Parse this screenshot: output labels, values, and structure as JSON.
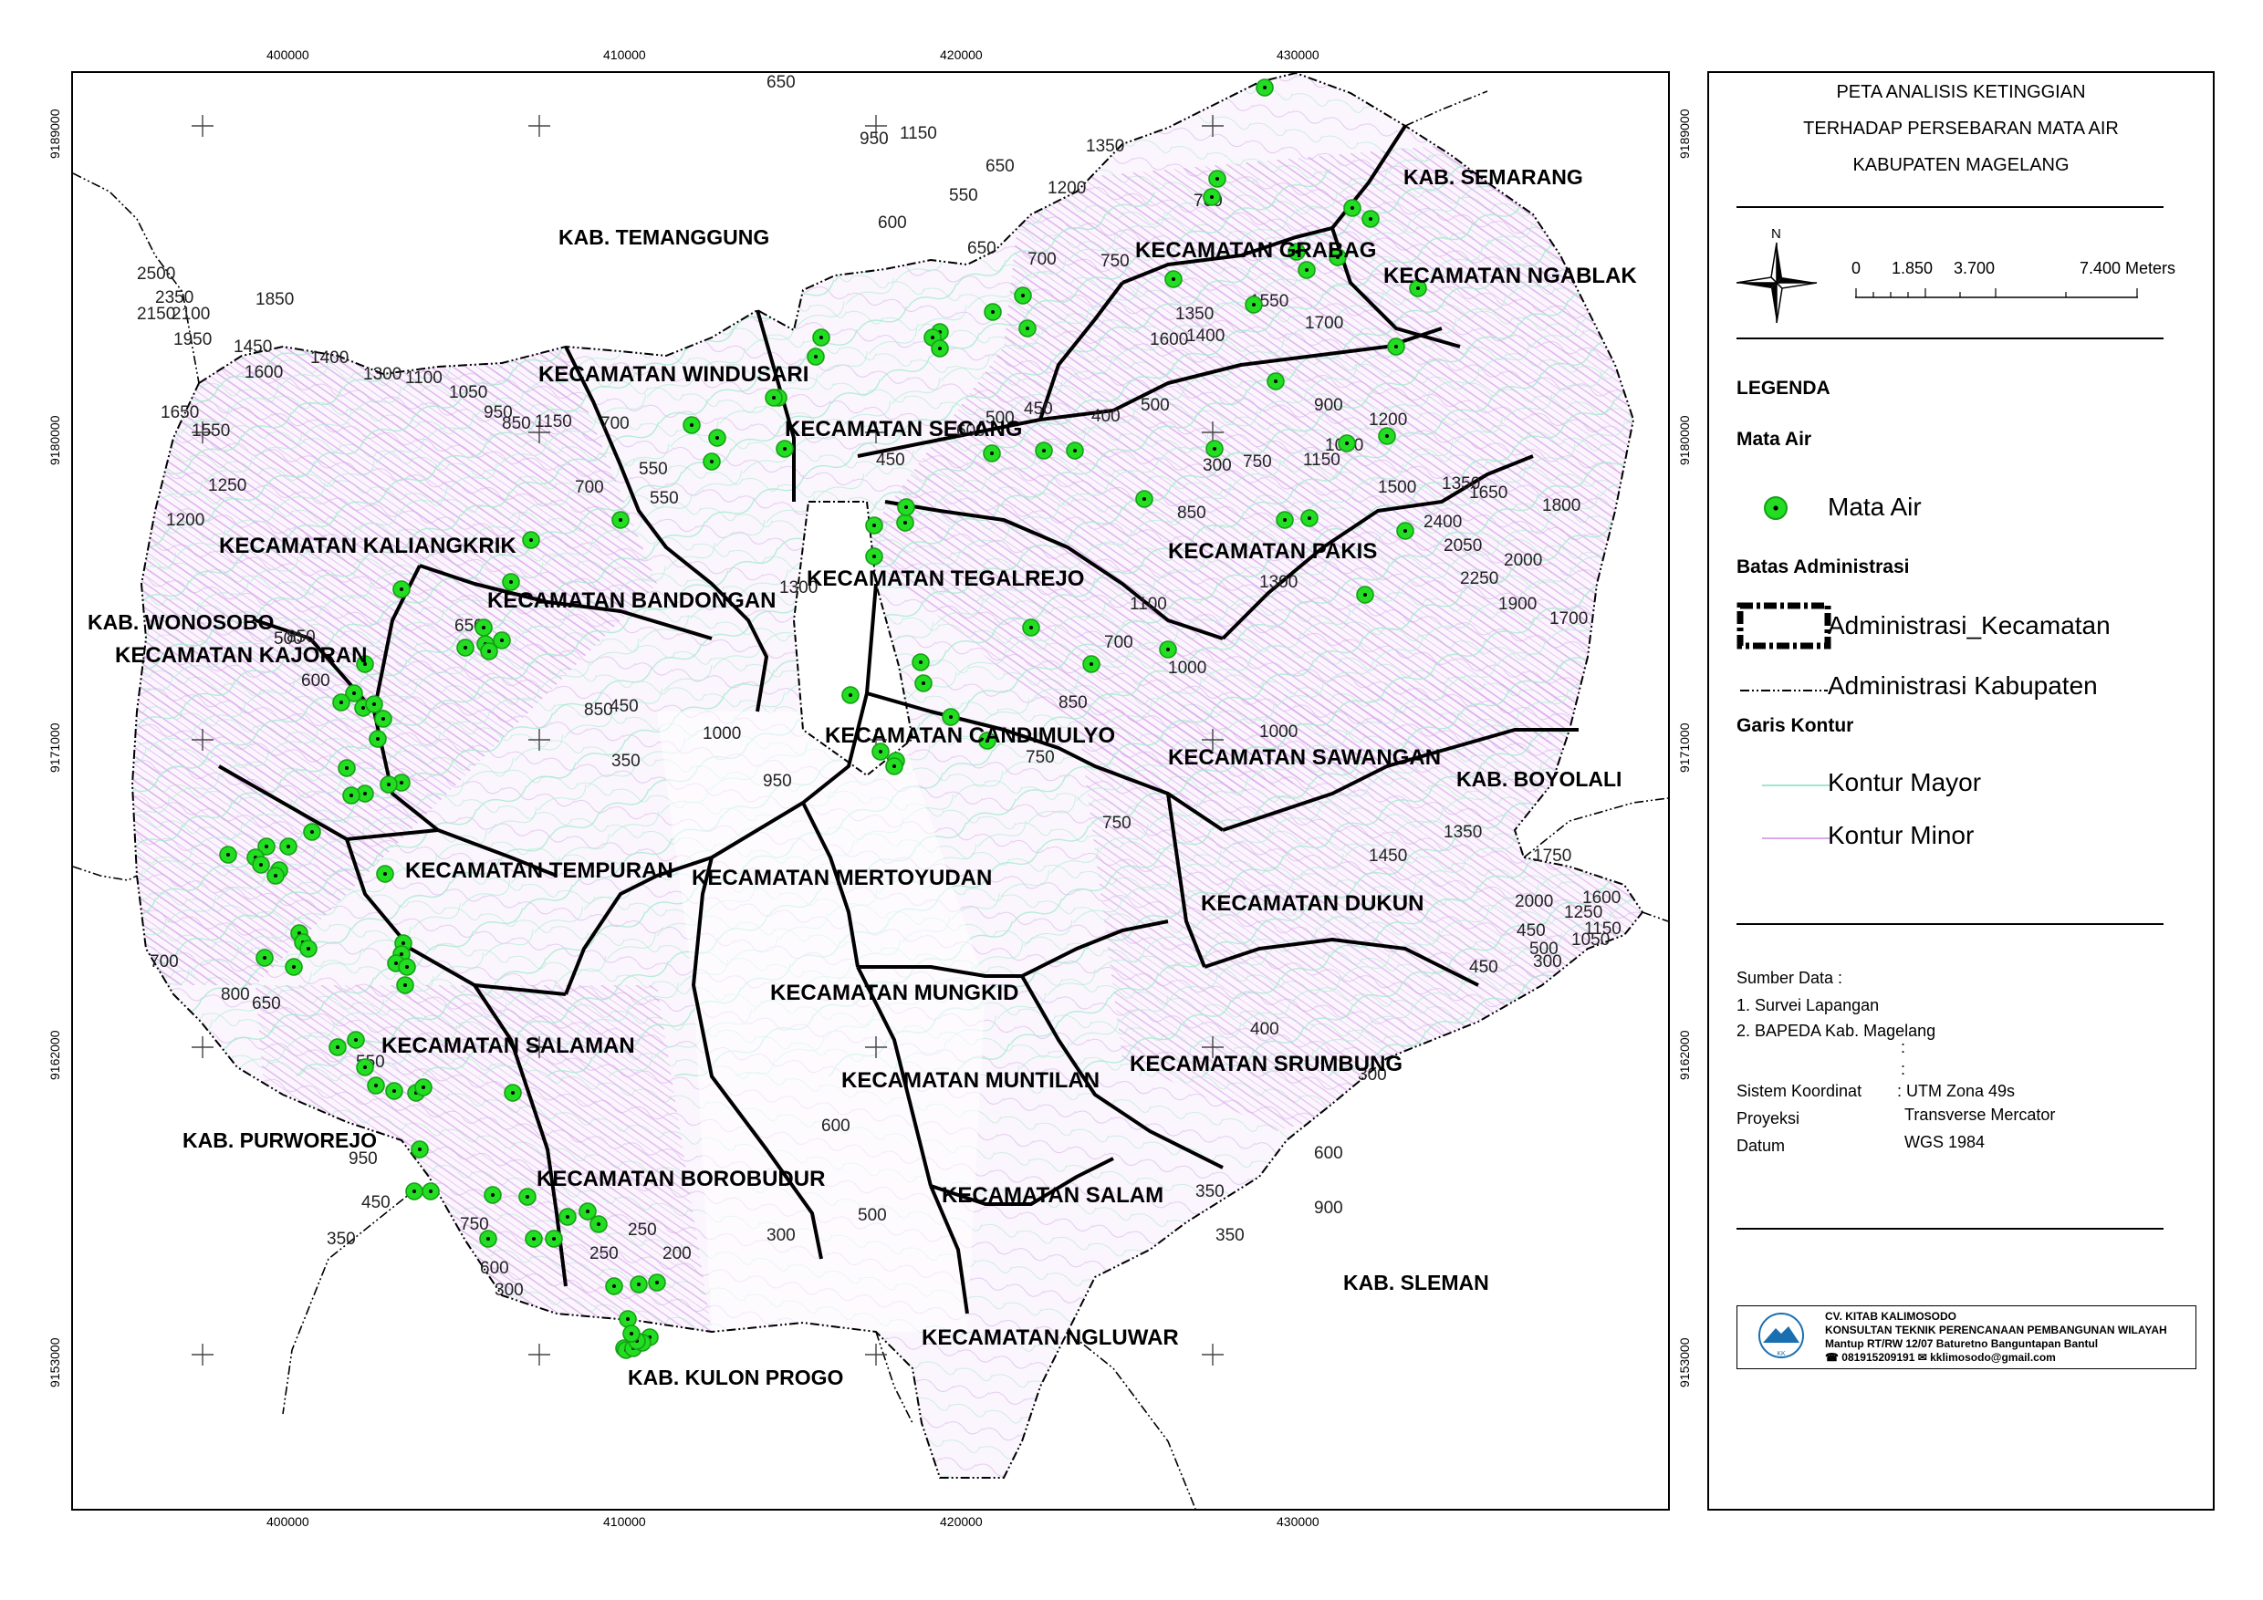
{
  "map": {
    "x_ticks": [
      "400000",
      "410000",
      "420000",
      "430000"
    ],
    "y_ticks": [
      "9189000",
      "9180000",
      "9171000",
      "9162000",
      "9153000"
    ],
    "kabupaten_labels": [
      "KAB. TEMANGGUNG",
      "KAB. SEMARANG",
      "KAB. WONOSOBO",
      "KAB. BOYOLALI",
      "KAB. PURWOREJO",
      "KAB. SLEMAN",
      "KAB. KULON PROGO"
    ],
    "kecamatan_labels": [
      "KECAMATAN WINDUSARI",
      "KECAMATAN SECANG",
      "KECAMATAN GRABAG",
      "KECAMATAN NGABLAK",
      "KECAMATAN KALIANGKRIK",
      "KECAMATAN BANDONGAN",
      "KECAMATAN TEGALREJO",
      "KECAMATAN PAKIS",
      "KECAMATAN KAJORAN",
      "KECAMATAN CANDIMULYO",
      "KECAMATAN SAWANGAN",
      "KECAMATAN TEMPURAN",
      "KECAMATAN MERTOYUDAN",
      "KECAMATAN DUKUN",
      "KECAMATAN MUNGKID",
      "KECAMATAN SALAMAN",
      "KECAMATAN MUNTILAN",
      "KECAMATAN SRUMBUNG",
      "KECAMATAN BOROBUDUR",
      "KECAMATAN SALAM",
      "KECAMATAN NGLUWAR"
    ],
    "contour_labels": [
      "650",
      "950",
      "1150",
      "1350",
      "1200",
      "700",
      "550",
      "650",
      "600",
      "650",
      "700",
      "750",
      "1350",
      "1600",
      "1400",
      "1550",
      "1700",
      "2500",
      "2350",
      "2150",
      "2100",
      "1850",
      "1950",
      "1450",
      "1600",
      "1400",
      "1300",
      "1100",
      "1050",
      "950",
      "1150",
      "700",
      "550",
      "1650",
      "1550",
      "1250",
      "1200",
      "850",
      "700",
      "550",
      "450",
      "600",
      "500",
      "450",
      "400",
      "500",
      "300",
      "750",
      "1150",
      "900",
      "1050",
      "1200",
      "1350",
      "1500",
      "1650",
      "2400",
      "2000",
      "1800",
      "2050",
      "2250",
      "1900",
      "1700",
      "850",
      "1300",
      "1100",
      "1000",
      "750",
      "700",
      "1000",
      "750",
      "850",
      "500",
      "600",
      "850",
      "650",
      "850",
      "450",
      "350",
      "1000",
      "950",
      "1300",
      "1350",
      "1450",
      "1750",
      "2000",
      "1600",
      "1250",
      "1150",
      "1050",
      "450",
      "500",
      "300",
      "450",
      "350",
      "400",
      "300",
      "600",
      "500",
      "350",
      "900",
      "600",
      "800",
      "650",
      "700",
      "550",
      "950",
      "750",
      "600",
      "450",
      "350",
      "300",
      "250",
      "250",
      "200",
      "300"
    ],
    "spring_count": 140
  },
  "legend": {
    "title_lines": [
      "PETA ANALISIS KETINGGIAN",
      "TERHADAP PERSEBARAN MATA AIR",
      "KABUPATEN MAGELANG"
    ],
    "north": "N",
    "scale_labels": [
      "0",
      "1.850",
      "3.700",
      "7.400 Meters"
    ],
    "heading": "LEGENDA",
    "mata_air_title": "Mata Air",
    "mata_air_item": "Mata Air",
    "batas_title": "Batas Administrasi",
    "batas_kec": "Administrasi_Kecamatan",
    "batas_kab": "Administrasi Kabupaten",
    "kontur_title": "Garis Kontur",
    "kontur_mayor": "Kontur Mayor",
    "kontur_minor": "Kontur Minor",
    "sumber_title": "Sumber Data :",
    "sumber_1": "1. Survei Lapangan",
    "sumber_2": "2. BAPEDA Kab. Magelang",
    "colon_1": ":",
    "colon_2": ":",
    "sistem_label": "Sistem Koordinat",
    "sistem_value": ": UTM Zona 49s",
    "proyeksi_label": "Proyeksi",
    "proyeksi_value": "Transverse Mercator",
    "datum_label": "Datum",
    "datum_value": "WGS 1984",
    "consultant": {
      "name": "CV. KITAB KALIMOSODO",
      "desc": "KONSULTAN TEKNIK PERENCANAAN PEMBANGUNAN WILAYAH",
      "address": "Mantup RT/RW 12/07  Baturetno Banguntapan Bantul",
      "contact": "☎ 081915209191 ✉ kklimosodo@gmail.com",
      "logo_text": "KK"
    }
  },
  "colors": {
    "spring": "#22dd22",
    "contour_minor": "#d8a8ee",
    "contour_major": "#9ee8cc",
    "kec_boundary": "#000000"
  }
}
